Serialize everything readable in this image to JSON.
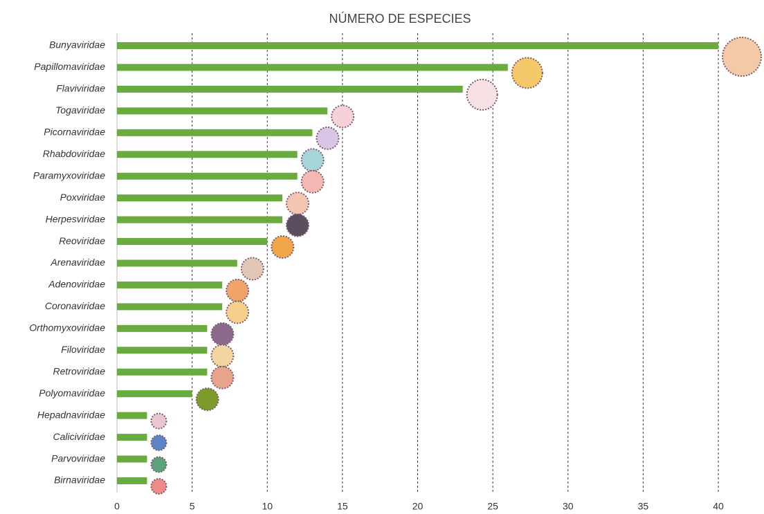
{
  "chart_data": {
    "type": "barh",
    "title": "NÚMERO DE ESPECIES",
    "categories": [
      "Bunyaviridae",
      "Papillomaviridae",
      "Flaviviridae",
      "Togaviridae",
      "Picornaviridae",
      "Rhabdoviridae",
      "Paramyxoviridae",
      "Poxviridae",
      "Herpesviridae",
      "Reoviridae",
      "Arenaviridae",
      "Adenoviridae",
      "Coronaviridae",
      "Orthomyxoviridae",
      "Filoviridae",
      "Retroviridae",
      "Polyomaviridae",
      "Hepadnaviridae",
      "Caliciviridae",
      "Parvoviridae",
      "Birnaviridae"
    ],
    "values": [
      40,
      26,
      23,
      14,
      13,
      12,
      12,
      11,
      11,
      10,
      8,
      7,
      7,
      6,
      6,
      6,
      5,
      2,
      2,
      2,
      2
    ],
    "color": "#6aab3f",
    "xlim": [
      0,
      40
    ],
    "xticks": [
      0,
      5,
      10,
      15,
      20,
      25,
      30,
      35,
      40
    ],
    "grid": true
  }
}
